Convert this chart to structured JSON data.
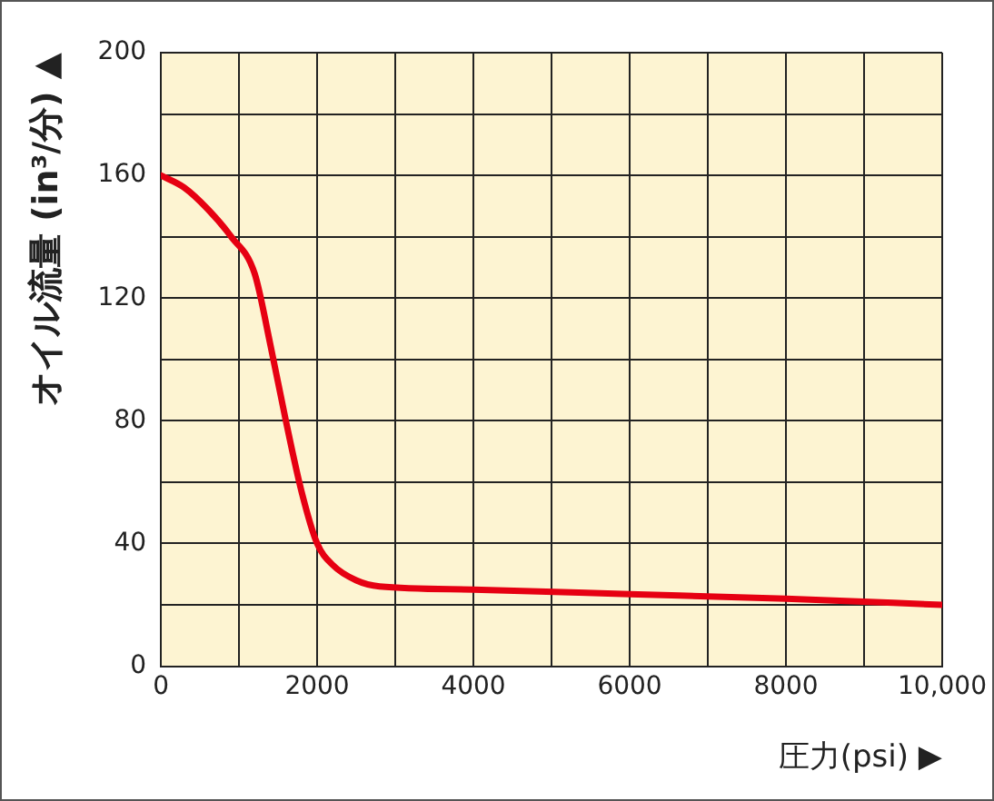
{
  "chart_data": {
    "type": "line",
    "xlabel": "圧力(psi) ▶",
    "ylabel": "オイル流量 (in³/分) ▲",
    "x": [
      0,
      300,
      600,
      900,
      1200,
      1400,
      1600,
      1800,
      2000,
      2200,
      2500,
      2800,
      4000,
      6000,
      8000,
      10000
    ],
    "series": [
      {
        "color": "#e60012",
        "values": [
          160,
          156,
          149,
          140,
          128,
          105,
          80,
          57,
          40,
          33,
          28,
          26,
          25,
          23.5,
          22,
          20
        ]
      }
    ],
    "xlim": [
      0,
      10000
    ],
    "xticks": [
      0,
      {
        "value": 1000,
        "label": null
      },
      2000,
      {
        "value": 3000,
        "label": null
      },
      4000,
      {
        "value": 5000,
        "label": null
      },
      6000,
      {
        "value": 7000,
        "label": null
      },
      8000,
      {
        "value": 9000,
        "label": null
      },
      {
        "value": 10000,
        "label": "10,000"
      }
    ],
    "ylim": [
      0,
      200
    ],
    "yticks": [
      0,
      {
        "value": 20,
        "label": null
      },
      40,
      {
        "value": 60,
        "label": null
      },
      80,
      {
        "value": 100,
        "label": null
      },
      120,
      {
        "value": 140,
        "label": null
      },
      160,
      {
        "value": 180,
        "label": null
      },
      200
    ],
    "grid": true,
    "legend": false,
    "marker": "none",
    "line_style": "solid"
  }
}
